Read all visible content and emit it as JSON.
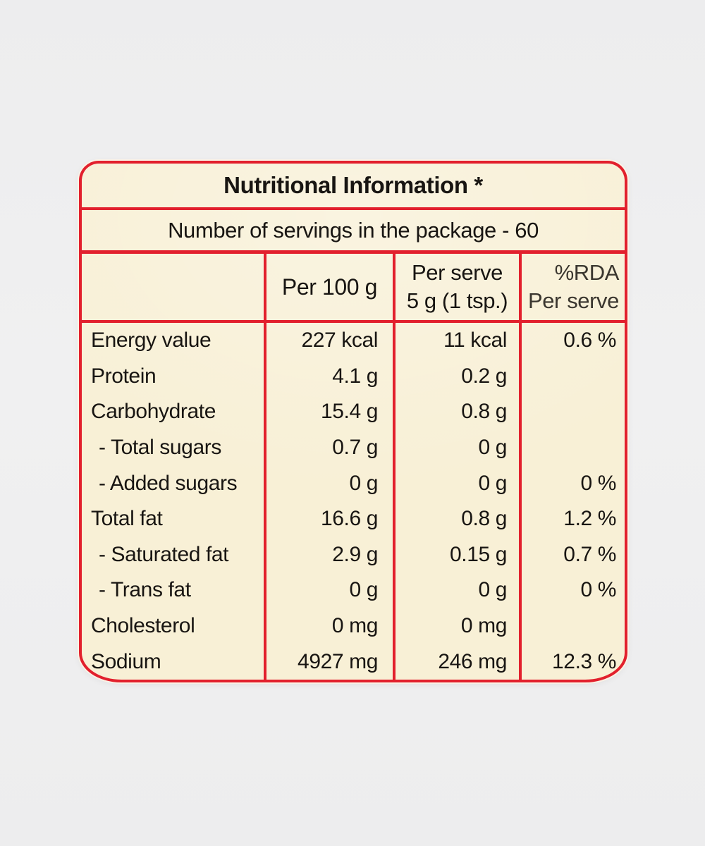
{
  "label": {
    "title": "Nutritional Information *",
    "servings": "Number of servings in the package - 60",
    "border_color": "#e2202d",
    "background_color": "#f8f0d6",
    "text_color": "#181512"
  },
  "table": {
    "header": {
      "per100": "Per 100 g",
      "serve_line1": "Per serve",
      "serve_line2": "5 g (1 tsp.)",
      "rda_line1": "%RDA",
      "rda_line2": "Per serve"
    },
    "rows": [
      {
        "nutrient": "Energy value",
        "per100": "227 kcal",
        "serve": "11 kcal",
        "rda": "0.6 %"
      },
      {
        "nutrient": "Protein",
        "per100": "4.1 g",
        "serve": "0.2 g",
        "rda": ""
      },
      {
        "nutrient": "Carbohydrate",
        "per100": "15.4 g",
        "serve": "0.8 g",
        "rda": ""
      },
      {
        "nutrient": "- Total sugars",
        "per100": "0.7 g",
        "serve": "0 g",
        "rda": ""
      },
      {
        "nutrient": "- Added sugars",
        "per100": "0 g",
        "serve": "0 g",
        "rda": "0 %"
      },
      {
        "nutrient": "Total fat",
        "per100": "16.6 g",
        "serve": "0.8 g",
        "rda": "1.2 %"
      },
      {
        "nutrient": "- Saturated fat",
        "per100": "2.9 g",
        "serve": "0.15 g",
        "rda": "0.7 %"
      },
      {
        "nutrient": "- Trans fat",
        "per100": "0 g",
        "serve": "0 g",
        "rda": "0 %"
      },
      {
        "nutrient": "Cholesterol",
        "per100": "0 mg",
        "serve": "0 mg",
        "rda": ""
      },
      {
        "nutrient": "Sodium",
        "per100": "4927 mg",
        "serve": "246 mg",
        "rda": "12.3 %"
      }
    ]
  }
}
